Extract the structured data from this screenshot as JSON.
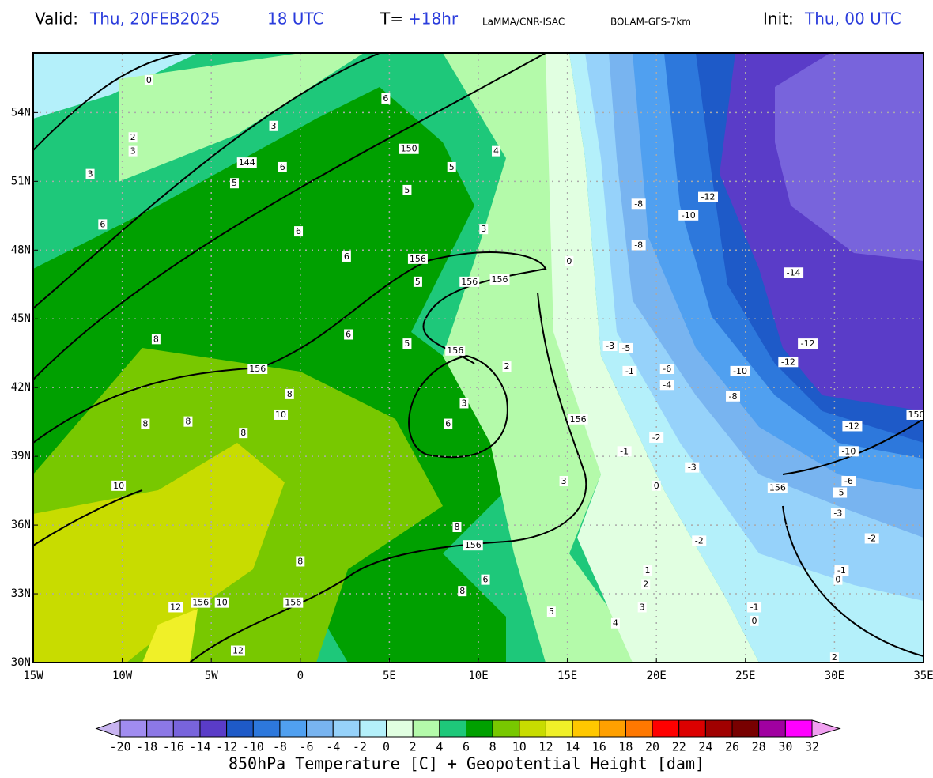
{
  "header": {
    "valid_label": "Valid:",
    "valid_date": "Thu, 20FEB2025",
    "valid_time": "18 UTC",
    "step_label": "T=",
    "step": "+18hr",
    "source": "LaMMA/CNR-ISAC",
    "model": "BOLAM-GFS-7km",
    "init_label": "Init:",
    "init": "Thu, 00 UTC"
  },
  "chart_data": {
    "type": "map",
    "title": "850hPa Temperature [C] + Geopotential Height [dam]",
    "xlim": [
      -15,
      35
    ],
    "ylim": [
      30,
      56.6
    ],
    "grid": true,
    "xticks": [
      {
        "value": -15,
        "label": "15W"
      },
      {
        "value": -10,
        "label": "10W"
      },
      {
        "value": -5,
        "label": "5W"
      },
      0,
      {
        "value": 5,
        "label": "5E"
      },
      {
        "value": 10,
        "label": "10E"
      },
      {
        "value": 15,
        "label": "15E"
      },
      {
        "value": 20,
        "label": "20E"
      },
      {
        "value": 25,
        "label": "25E"
      },
      {
        "value": 30,
        "label": "30E"
      },
      {
        "value": 35,
        "label": "35E"
      }
    ],
    "yticks": [
      {
        "value": 30,
        "label": "30N"
      },
      {
        "value": 33,
        "label": "33N"
      },
      {
        "value": 36,
        "label": "36N"
      },
      {
        "value": 39,
        "label": "39N"
      },
      {
        "value": 42,
        "label": "42N"
      },
      {
        "value": 45,
        "label": "45N"
      },
      {
        "value": 48,
        "label": "48N"
      },
      {
        "value": 51,
        "label": "51N"
      },
      {
        "value": 54,
        "label": "54N"
      }
    ],
    "labels": [
      {
        "lon": -8.5,
        "lat": 55.4,
        "value": 0
      },
      {
        "lon": 4.8,
        "lat": 54.6,
        "value": 6
      },
      {
        "lon": -1.5,
        "lat": 53.4,
        "value": 3
      },
      {
        "lon": -9.4,
        "lat": 52.9,
        "value": 2
      },
      {
        "lon": -9.4,
        "lat": 52.3,
        "value": 3
      },
      {
        "lon": 6.1,
        "lat": 52.4,
        "value": 150
      },
      {
        "lon": 11.0,
        "lat": 52.3,
        "value": 4
      },
      {
        "lon": -1.0,
        "lat": 51.6,
        "value": 6
      },
      {
        "lon": 8.5,
        "lat": 51.6,
        "value": 5
      },
      {
        "lon": -3.0,
        "lat": 51.8,
        "value": 144
      },
      {
        "lon": -3.7,
        "lat": 50.9,
        "value": 5
      },
      {
        "lon": -11.8,
        "lat": 51.3,
        "value": 3
      },
      {
        "lon": 6.0,
        "lat": 50.6,
        "value": 5
      },
      {
        "lon": -11.1,
        "lat": 49.1,
        "value": 6
      },
      {
        "lon": -0.1,
        "lat": 48.8,
        "value": 6
      },
      {
        "lon": 10.3,
        "lat": 48.9,
        "value": 3
      },
      {
        "lon": 22.9,
        "lat": 50.3,
        "value": -12
      },
      {
        "lon": 21.8,
        "lat": 49.5,
        "value": -10
      },
      {
        "lon": 19.0,
        "lat": 50.0,
        "value": -8
      },
      {
        "lon": 19.0,
        "lat": 48.2,
        "value": -8
      },
      {
        "lon": 2.6,
        "lat": 47.7,
        "value": 6
      },
      {
        "lon": 6.6,
        "lat": 47.6,
        "value": 156
      },
      {
        "lon": 15.1,
        "lat": 47.5,
        "value": 0
      },
      {
        "lon": 9.5,
        "lat": 46.6,
        "value": 156
      },
      {
        "lon": 11.2,
        "lat": 46.7,
        "value": 156
      },
      {
        "lon": 27.7,
        "lat": 47.0,
        "value": -14
      },
      {
        "lon": 6.6,
        "lat": 46.6,
        "value": 5
      },
      {
        "lon": 2.7,
        "lat": 44.3,
        "value": 6
      },
      {
        "lon": 6.0,
        "lat": 43.9,
        "value": 5
      },
      {
        "lon": 8.7,
        "lat": 43.6,
        "value": 156
      },
      {
        "lon": -8.1,
        "lat": 44.1,
        "value": 8
      },
      {
        "lon": 17.4,
        "lat": 43.8,
        "value": -3
      },
      {
        "lon": 18.3,
        "lat": 43.7,
        "value": -5
      },
      {
        "lon": 28.5,
        "lat": 43.9,
        "value": -12
      },
      {
        "lon": 27.4,
        "lat": 43.1,
        "value": -12
      },
      {
        "lon": -2.4,
        "lat": 42.8,
        "value": 156
      },
      {
        "lon": 11.6,
        "lat": 42.9,
        "value": 2
      },
      {
        "lon": 20.6,
        "lat": 42.8,
        "value": -6
      },
      {
        "lon": 18.5,
        "lat": 42.7,
        "value": -1
      },
      {
        "lon": 24.7,
        "lat": 42.7,
        "value": -10
      },
      {
        "lon": 20.6,
        "lat": 42.1,
        "value": -4
      },
      {
        "lon": -0.6,
        "lat": 41.7,
        "value": 8
      },
      {
        "lon": 24.3,
        "lat": 41.6,
        "value": -8
      },
      {
        "lon": 9.2,
        "lat": 41.3,
        "value": 3
      },
      {
        "lon": -8.7,
        "lat": 40.4,
        "value": 8
      },
      {
        "lon": -6.3,
        "lat": 40.5,
        "value": 8
      },
      {
        "lon": -1.1,
        "lat": 40.8,
        "value": 10
      },
      {
        "lon": -3.2,
        "lat": 40.0,
        "value": 8
      },
      {
        "lon": 8.3,
        "lat": 40.4,
        "value": 6
      },
      {
        "lon": 15.6,
        "lat": 40.6,
        "value": 156
      },
      {
        "lon": 31.0,
        "lat": 40.3,
        "value": -12
      },
      {
        "lon": 34.6,
        "lat": 40.8,
        "value": 150
      },
      {
        "lon": 20.0,
        "lat": 39.8,
        "value": -2
      },
      {
        "lon": 18.2,
        "lat": 39.2,
        "value": -1
      },
      {
        "lon": 30.8,
        "lat": 39.2,
        "value": -10
      },
      {
        "lon": 22.0,
        "lat": 38.5,
        "value": -3
      },
      {
        "lon": 30.8,
        "lat": 37.9,
        "value": -6
      },
      {
        "lon": -10.2,
        "lat": 37.7,
        "value": 10
      },
      {
        "lon": 14.8,
        "lat": 37.9,
        "value": 3
      },
      {
        "lon": 20.0,
        "lat": 37.7,
        "value": 0
      },
      {
        "lon": 26.8,
        "lat": 37.6,
        "value": 156
      },
      {
        "lon": 30.3,
        "lat": 37.4,
        "value": -5
      },
      {
        "lon": 30.2,
        "lat": 36.5,
        "value": -3
      },
      {
        "lon": 8.8,
        "lat": 35.9,
        "value": 8
      },
      {
        "lon": 9.7,
        "lat": 35.1,
        "value": 156
      },
      {
        "lon": 22.4,
        "lat": 35.3,
        "value": -2
      },
      {
        "lon": 32.1,
        "lat": 35.4,
        "value": -2
      },
      {
        "lon": 0.0,
        "lat": 34.4,
        "value": 8
      },
      {
        "lon": 30.4,
        "lat": 34.0,
        "value": -1
      },
      {
        "lon": 19.5,
        "lat": 34.0,
        "value": 1
      },
      {
        "lon": 19.4,
        "lat": 33.4,
        "value": 2
      },
      {
        "lon": 30.2,
        "lat": 33.6,
        "value": 0
      },
      {
        "lon": 10.4,
        "lat": 33.6,
        "value": 6
      },
      {
        "lon": 9.1,
        "lat": 33.1,
        "value": 8
      },
      {
        "lon": -5.6,
        "lat": 32.6,
        "value": 156
      },
      {
        "lon": -4.4,
        "lat": 32.6,
        "value": 10
      },
      {
        "lon": -7.0,
        "lat": 32.4,
        "value": 12
      },
      {
        "lon": -0.4,
        "lat": 32.6,
        "value": 156
      },
      {
        "lon": 14.1,
        "lat": 32.2,
        "value": 5
      },
      {
        "lon": 19.2,
        "lat": 32.4,
        "value": 3
      },
      {
        "lon": 25.5,
        "lat": 32.4,
        "value": -1
      },
      {
        "lon": 17.7,
        "lat": 31.7,
        "value": 4
      },
      {
        "lon": 25.5,
        "lat": 31.8,
        "value": 0
      },
      {
        "lon": -3.5,
        "lat": 30.5,
        "value": 12
      },
      {
        "lon": 30.0,
        "lat": 30.2,
        "value": 2
      }
    ],
    "colorbar": {
      "levels": [
        -20,
        -18,
        -16,
        -14,
        -12,
        -10,
        -8,
        -6,
        -4,
        -2,
        0,
        2,
        4,
        6,
        8,
        10,
        12,
        14,
        16,
        18,
        20,
        22,
        24,
        26,
        28,
        30,
        32
      ],
      "colors": [
        "#c8b4f0",
        "#a08cf0",
        "#8c78e6",
        "#7864dc",
        "#5a3cc8",
        "#1e5ac8",
        "#2d78dc",
        "#50a0f0",
        "#78b4f0",
        "#96d2fa",
        "#b4f0fa",
        "#e1ffe1",
        "#b4faaa",
        "#1ec87a",
        "#00a000",
        "#78c800",
        "#c8dc00",
        "#f0f028",
        "#ffc800",
        "#ffa000",
        "#ff7800",
        "#ff0000",
        "#dc0000",
        "#a00000",
        "#780000",
        "#a000a0",
        "#ff00ff",
        "#f0a0f0"
      ]
    }
  }
}
